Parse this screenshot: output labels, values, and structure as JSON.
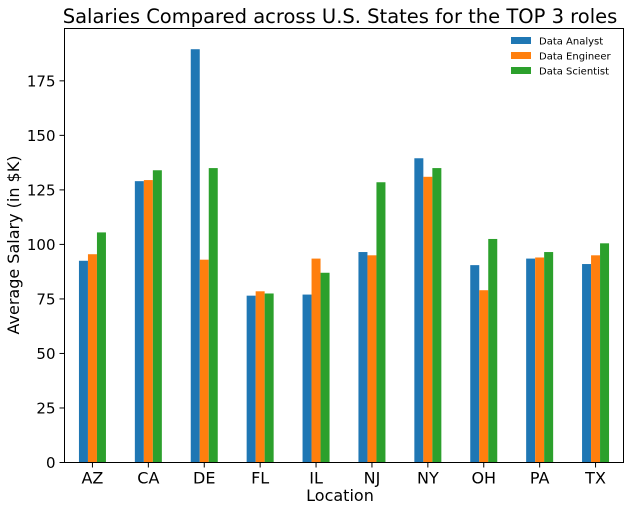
{
  "chart_data": {
    "type": "bar",
    "title": "Salaries Compared across U.S. States for the TOP 3 roles",
    "xlabel": "Location",
    "ylabel": "Average Salary (in $K)",
    "categories": [
      "AZ",
      "CA",
      "DE",
      "FL",
      "IL",
      "NJ",
      "NY",
      "OH",
      "PA",
      "TX"
    ],
    "ylim": [
      0,
      199
    ],
    "yticks": [
      0,
      25,
      50,
      75,
      100,
      125,
      150,
      175
    ],
    "grid": false,
    "legend_position": "top-right",
    "series": [
      {
        "name": "Data Analyst",
        "color": "#1f77b4",
        "values": [
          92.5,
          129,
          189.5,
          76.5,
          77,
          96.5,
          139.5,
          90.5,
          93.5,
          91
        ]
      },
      {
        "name": "Data Engineer",
        "color": "#ff7f0e",
        "values": [
          95.5,
          129.5,
          93,
          78.5,
          93.5,
          95,
          131,
          79,
          94,
          95
        ]
      },
      {
        "name": "Data Scientist",
        "color": "#2ca02c",
        "values": [
          105.5,
          134,
          135,
          77.5,
          87,
          128.5,
          135,
          102.5,
          96.5,
          100.5
        ]
      }
    ]
  }
}
